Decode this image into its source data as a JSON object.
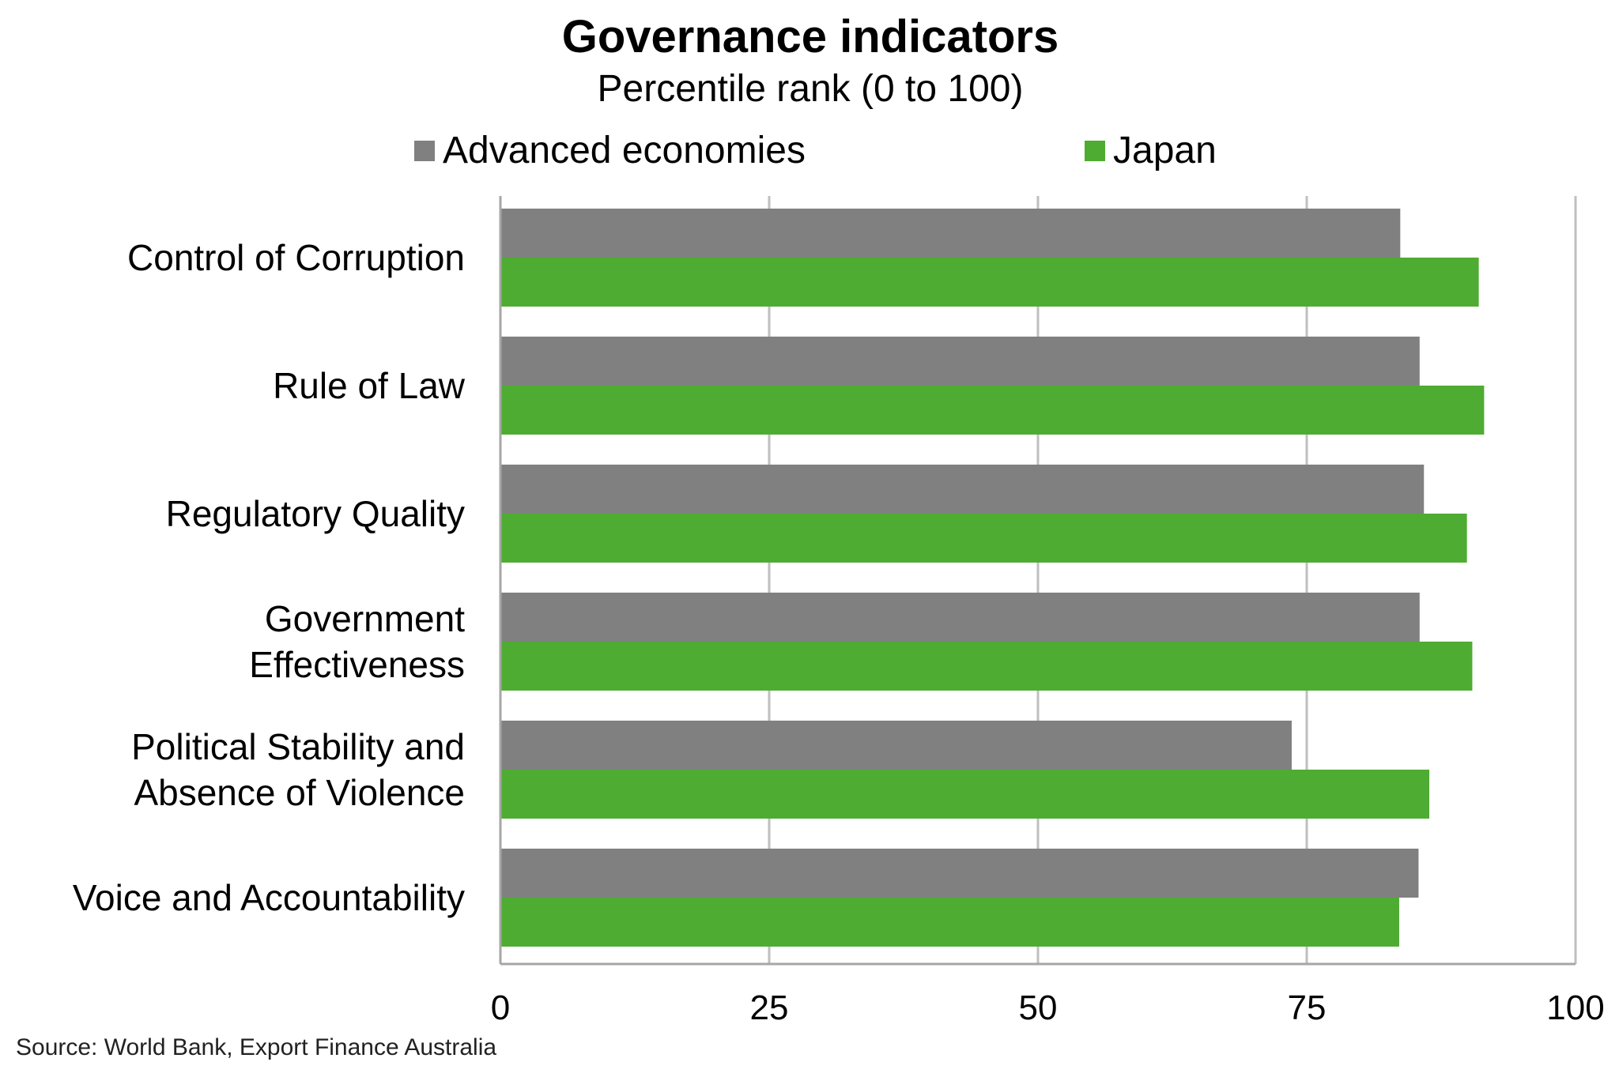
{
  "chart_data": {
    "type": "bar",
    "orientation": "horizontal",
    "title": "Governance indicators",
    "subtitle": "Percentile rank (0 to 100)",
    "categories": [
      [
        "Control of Corruption"
      ],
      [
        "Rule of Law"
      ],
      [
        "Regulatory Quality"
      ],
      [
        "Government",
        "Effectiveness"
      ],
      [
        "Political Stability and",
        "Absence of Violence"
      ],
      [
        "Voice and Accountability"
      ]
    ],
    "series": [
      {
        "name": "Advanced economies",
        "color": "#808080",
        "values": [
          83.7,
          85.5,
          85.9,
          85.5,
          73.6,
          85.4
        ]
      },
      {
        "name": "Japan",
        "color": "#4EAC32",
        "values": [
          91.0,
          91.5,
          89.9,
          90.4,
          86.4,
          83.6
        ]
      }
    ],
    "xlim": [
      0,
      100
    ],
    "xticks": [
      "0",
      "25",
      "50",
      "75",
      "100"
    ],
    "grid": true,
    "legend_position": "top",
    "source": "Source: World Bank, Export Finance Australia"
  }
}
